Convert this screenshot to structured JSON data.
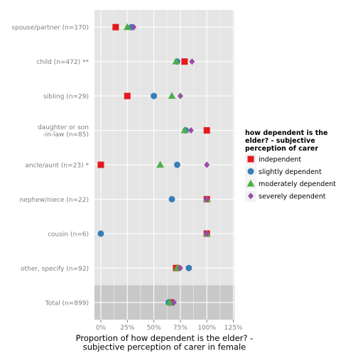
{
  "chart_data": {
    "type": "scatter",
    "xlabel": "Proportion of how dependent is the elder? -\nsubjective perception of carer in female",
    "xlim": [
      -0.06,
      1.26
    ],
    "x_ticks": [
      {
        "value": 0,
        "label": "0%"
      },
      {
        "value": 0.25,
        "label": "25%"
      },
      {
        "value": 0.5,
        "label": "50%"
      },
      {
        "value": 0.75,
        "label": "75%"
      },
      {
        "value": 1.0,
        "label": "100%"
      },
      {
        "value": 1.25,
        "label": "125%"
      }
    ],
    "categories": [
      "spouse/partner (n=170)",
      "child (n=472) **",
      "sibling (n=29)",
      "daughter or son\n-in-law (n=85)",
      "ancle/aunt (n=23) *",
      "nephew/niece (n=22)",
      "cousin (n=6)",
      "other, specify (n=92)",
      "Total (n=899)"
    ],
    "highlight_category": "Total (n=899)",
    "grid": true,
    "legend_position": "right",
    "legend_title": "how dependent is the\nelder? - subjective\nperception of carer",
    "series": [
      {
        "name": "independent",
        "shape": "square",
        "color": "#e41a1c",
        "values": [
          0.14,
          0.79,
          0.25,
          1.0,
          0.0,
          1.0,
          1.0,
          0.71,
          0.66
        ]
      },
      {
        "name": "slightly dependent",
        "shape": "circle",
        "color": "#377eb8",
        "values": [
          0.29,
          0.72,
          0.5,
          0.8,
          0.72,
          0.67,
          0.0,
          0.83,
          0.64
        ]
      },
      {
        "name": "moderately dependent",
        "shape": "triangle",
        "color": "#4daf4a",
        "values": [
          0.25,
          0.71,
          0.67,
          0.79,
          0.56,
          1.0,
          1.0,
          0.72,
          0.65
        ]
      },
      {
        "name": "severely dependent",
        "shape": "diamond",
        "color": "#984ea3",
        "values": [
          0.31,
          0.86,
          0.75,
          0.85,
          1.0,
          1.0,
          1.0,
          0.75,
          0.69
        ]
      }
    ]
  }
}
